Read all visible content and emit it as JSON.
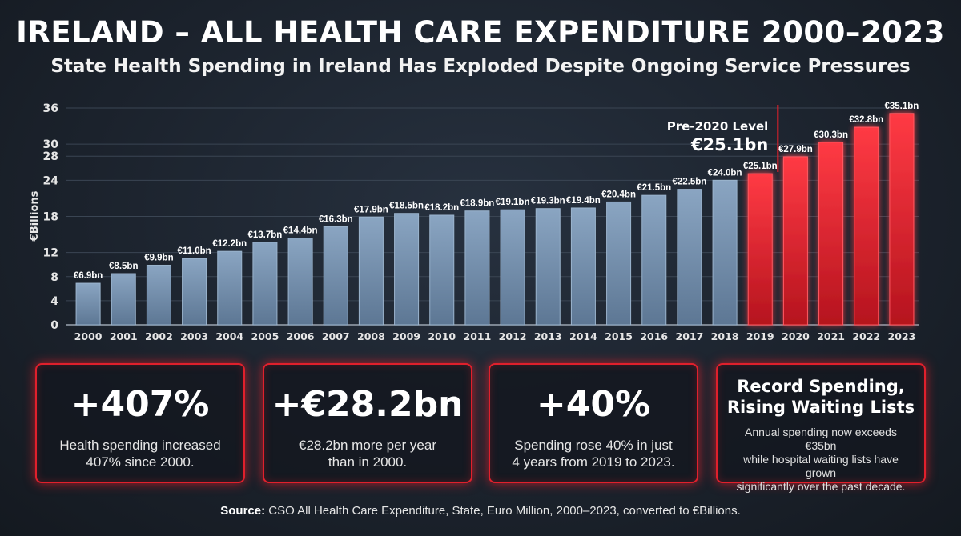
{
  "title": "IRELAND – ALL HEALTH CARE EXPENDITURE 2000–2023",
  "subtitle": "State Health Spending in Ireland Has Exploded Despite Ongoing Service Pressures",
  "colors": {
    "bar_pre": "#6f8aa6",
    "bar_post": "#e3202b",
    "background": "#1f2630",
    "card_border": "#e0202c"
  },
  "chart_data": {
    "type": "bar",
    "ylabel": "€Billions",
    "ylim": [
      0,
      36
    ],
    "yticks": [
      "0",
      "4",
      "8",
      "12",
      "18",
      "24",
      "28",
      "30",
      "36"
    ],
    "categories": [
      "2000",
      "2001",
      "2002",
      "2003",
      "2004",
      "2005",
      "2006",
      "2007",
      "2008",
      "2009",
      "2010",
      "2011",
      "2012",
      "2013",
      "2014",
      "2015",
      "2016",
      "2017",
      "2018",
      "2019",
      "2020",
      "2021",
      "2022",
      "2023"
    ],
    "values": [
      6.9,
      8.5,
      9.9,
      11.0,
      12.2,
      13.7,
      14.4,
      16.3,
      17.9,
      18.5,
      18.2,
      18.9,
      19.1,
      19.3,
      19.4,
      20.4,
      21.5,
      22.5,
      24.0,
      25.1,
      27.9,
      30.3,
      32.8,
      35.1
    ],
    "labels": [
      "€6.9bn",
      "€8.5bn",
      "€9.9bn",
      "€11.0bn",
      "€12.2bn",
      "€13.7bn",
      "€14.4bn",
      "€16.3bn",
      "€17.9bn",
      "€18.5bn",
      "€18.2bn",
      "€18.9bn",
      "€19.1bn",
      "€19.3bn",
      "€19.4bn",
      "€20.4bn",
      "€21.5bn",
      "€22.5bn",
      "€24.0bn",
      "€25.1bn",
      "€27.9bn",
      "€30.3bn",
      "€32.8bn",
      "€35.1bn"
    ],
    "highlight_from": "2019",
    "annotation": {
      "line1": "Pre-2020 Level",
      "line2": "€25.1bn",
      "between": [
        "2019",
        "2020"
      ]
    },
    "grid": true
  },
  "cards": [
    {
      "big": "+407%",
      "desc_line1": "Health spending increased",
      "desc_line2": "407% since 2000."
    },
    {
      "big": "+€28.2bn",
      "desc_line1": "€28.2bn more per year",
      "desc_line2": "than in 2000."
    },
    {
      "big": "+40%",
      "desc_line1": "Spending rose 40% in just",
      "desc_line2": "4 years from 2019 to 2023."
    },
    {
      "head_line1": "Record Spending,",
      "head_line2": "Rising Waiting Lists",
      "small_line1": "Annual spending now exceeds €35bn",
      "small_line2": "while hospital waiting lists have grown",
      "small_line3": "significantly over the past decade."
    }
  ],
  "source": {
    "label": "Source:",
    "text": "CSO All Health Care Expenditure, State, Euro Million, 2000–2023, converted to €Billions."
  }
}
